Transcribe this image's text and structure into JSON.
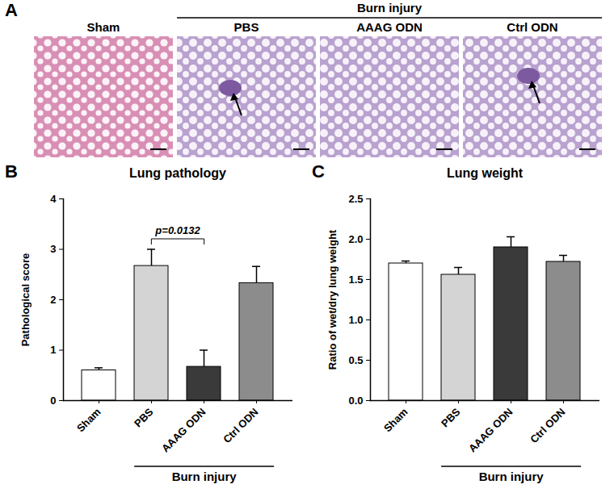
{
  "chart_data": [
    {
      "type": "bar",
      "panel_label": "B",
      "title": "Lung pathology",
      "y_label": "Pathological score",
      "categories": [
        "Sham",
        "PBS",
        "AAAG ODN",
        "Ctrl ODN"
      ],
      "values": [
        0.6,
        2.67,
        0.67,
        2.33
      ],
      "errors": [
        0.05,
        0.33,
        0.33,
        0.33
      ],
      "colors": [
        "#ffffff",
        "#d4d4d4",
        "#3a3a3a",
        "#8c8c8c"
      ],
      "ylim": [
        0,
        4
      ],
      "yticks": [
        0,
        1,
        2,
        3,
        4
      ],
      "group_label": {
        "text": "Burn injury",
        "from": "PBS",
        "to": "Ctrl ODN"
      },
      "annotation": {
        "text": "p=0.0132",
        "from": "PBS",
        "to": "AAAG ODN"
      }
    },
    {
      "type": "bar",
      "panel_label": "C",
      "title": "Lung weight",
      "y_label": "Ratio of wet/dry lung weight",
      "categories": [
        "Sham",
        "PBS",
        "AAAG ODN",
        "Ctrl ODN"
      ],
      "values": [
        1.7,
        1.56,
        1.9,
        1.72
      ],
      "errors": [
        0.03,
        0.09,
        0.13,
        0.08
      ],
      "colors": [
        "#ffffff",
        "#d4d4d4",
        "#3a3a3a",
        "#8c8c8c"
      ],
      "ylim": [
        0,
        2.5
      ],
      "yticks": [
        {
          "value": 0,
          "label": "0.0"
        },
        {
          "value": 0.5,
          "label": "0.5"
        },
        {
          "value": 1,
          "label": "1.0"
        },
        {
          "value": 1.5,
          "label": "1.5"
        },
        {
          "value": 2,
          "label": "2.0"
        },
        {
          "value": 2.5,
          "label": "2.5"
        }
      ],
      "group_label": {
        "text": "Burn injury",
        "from": "PBS",
        "to": "Ctrl ODN"
      }
    }
  ],
  "image_panel": {
    "panel_label": "A",
    "group_label": "Burn injury",
    "labels": [
      "Sham",
      "PBS",
      "AAAG ODN",
      "Ctrl ODN"
    ]
  }
}
